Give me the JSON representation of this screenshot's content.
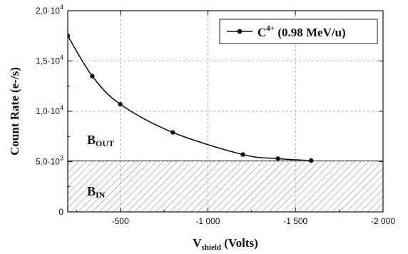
{
  "chart_data": {
    "type": "line",
    "xlabel": {
      "main": "V",
      "sub": "shield",
      "rest": " (Volts)"
    },
    "ylabel": "Count Rate (e-/s)",
    "xlim": [
      -200,
      -2000
    ],
    "ylim": [
      0,
      20000
    ],
    "x_ticks": [
      {
        "value": -500,
        "label": "-500"
      },
      {
        "value": -1000,
        "label": "-1 000"
      },
      {
        "value": -1500,
        "label": "-1 500"
      },
      {
        "value": -2000,
        "label": "-2 000"
      }
    ],
    "y_ticks": [
      {
        "value": 0,
        "mantissa": "0",
        "exp": ""
      },
      {
        "value": 5000,
        "mantissa": "5,0·10",
        "exp": "3"
      },
      {
        "value": 10000,
        "mantissa": "1,0·10",
        "exp": "4"
      },
      {
        "value": 15000,
        "mantissa": "1,5·10",
        "exp": "4"
      },
      {
        "value": 20000,
        "mantissa": "2,0·10",
        "exp": "4"
      }
    ],
    "grid": true,
    "legend_position": "top-right",
    "series": [
      {
        "name": {
          "main": "C",
          "sup": "4+",
          "rest": " (0.98 MeV/u)"
        },
        "color": "#111111",
        "x": [
          -200,
          -340,
          -500,
          -800,
          -1200,
          -1400,
          -1590
        ],
        "y": [
          17500,
          13500,
          10700,
          7900,
          5700,
          5300,
          5100
        ]
      }
    ],
    "threshold": {
      "value": 5100,
      "pattern": "hatched"
    },
    "regions": {
      "above": {
        "main": "B",
        "sub": "OUT"
      },
      "below": {
        "main": "B",
        "sub": "IN"
      }
    }
  }
}
